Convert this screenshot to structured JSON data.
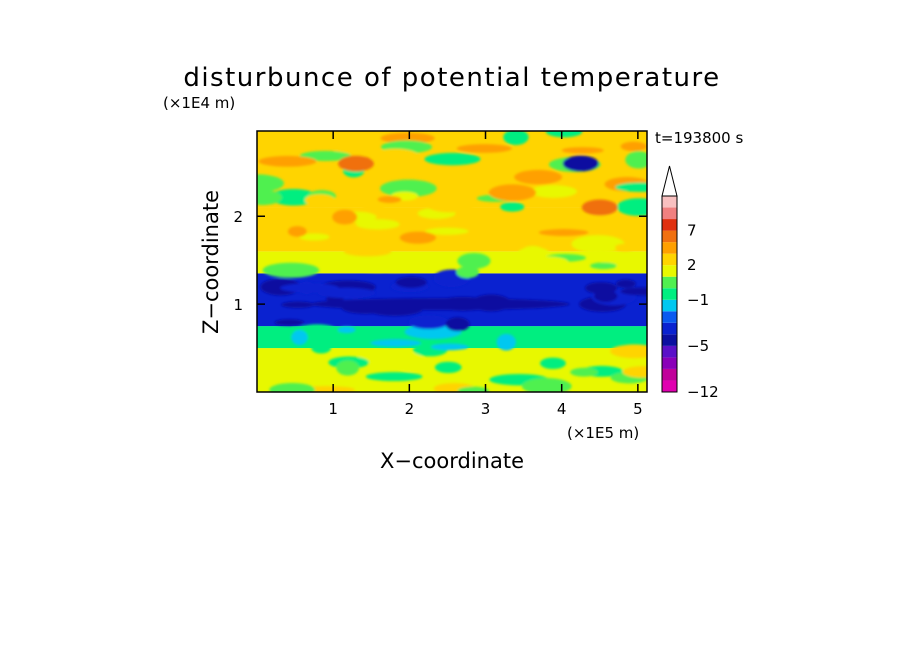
{
  "chart_data": {
    "type": "heatmap",
    "title": "disturbunce of potential temperature",
    "xlabel": "X−coordinate",
    "ylabel": "Z−coordinate",
    "x_unit": "(×1E5 m)",
    "y_unit": "(×1E4 m)",
    "time_label": "t=193800 s",
    "xlim": [
      0,
      5.12
    ],
    "ylim": [
      0,
      2.97
    ],
    "x_ticks": [
      1,
      2,
      3,
      4,
      5
    ],
    "y_ticks": [
      1,
      2
    ],
    "x_tick_labels": [
      "1",
      "2",
      "3",
      "4",
      "5"
    ],
    "y_tick_labels": [
      "1",
      "2"
    ],
    "colorbar": {
      "levels": [
        -12,
        -10,
        -8,
        -6,
        -5,
        -4,
        -3,
        -2,
        -1,
        0,
        1,
        2,
        3,
        5,
        7,
        9,
        11
      ],
      "labeled_ticks": [
        -12,
        -5,
        -1,
        2,
        7
      ],
      "tick_labels": [
        "−12",
        "−5",
        "−1",
        "2",
        "7"
      ],
      "colors": [
        "#e000b0",
        "#c0009a",
        "#8a00b8",
        "#5a10c8",
        "#0b0fa0",
        "#0a22d0",
        "#0a5af0",
        "#00c8f0",
        "#00ee80",
        "#50f050",
        "#e8f800",
        "#ffd400",
        "#ffa000",
        "#f07010",
        "#e03010",
        "#f08080",
        "#f8c0c0"
      ],
      "extend": "max"
    },
    "bands": [
      {
        "z_range": [
          0.0,
          0.5
        ],
        "description": "green/yellow/cyan mix",
        "value_range": [
          -1,
          3
        ]
      },
      {
        "z_range": [
          0.5,
          0.75
        ],
        "description": "cyan/green",
        "value_range": [
          -2,
          0
        ]
      },
      {
        "z_range": [
          0.75,
          1.35
        ],
        "description": "blue, darkest near z=1",
        "value_range": [
          -5,
          -3
        ]
      },
      {
        "z_range": [
          1.35,
          1.6
        ],
        "description": "yellow/green",
        "value_range": [
          0,
          2
        ]
      },
      {
        "z_range": [
          1.6,
          2.1
        ],
        "description": "yellow/orange",
        "value_range": [
          1,
          4
        ]
      },
      {
        "z_range": [
          2.1,
          2.97
        ],
        "description": "yellow/orange with green and cyan patches",
        "value_range": [
          -1,
          5
        ]
      }
    ],
    "features": [
      {
        "x": 4.25,
        "z": 2.6,
        "value": -5,
        "label": "dark blue cell"
      },
      {
        "x": 4.5,
        "z": 2.1,
        "value": 6,
        "label": "warm orange/red maximum"
      },
      {
        "x": 1.3,
        "z": 2.6,
        "value": 5,
        "label": "warm orange patch"
      }
    ]
  }
}
